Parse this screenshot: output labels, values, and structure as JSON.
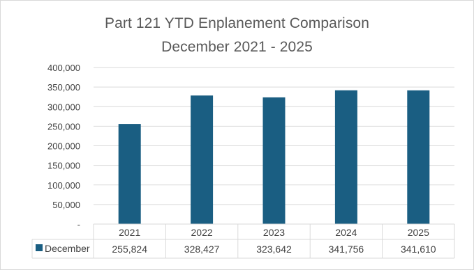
{
  "chart_data": {
    "type": "bar",
    "title": "Part 121 YTD Enplanement Comparison",
    "subtitle": "December 2021 - 2025",
    "categories": [
      "2021",
      "2022",
      "2023",
      "2024",
      "2025"
    ],
    "series": [
      {
        "name": "December",
        "values": [
          255824,
          328427,
          323642,
          341756,
          341610
        ],
        "value_labels": [
          "255,824",
          "328,427",
          "323,642",
          "341,756",
          "341,610"
        ],
        "color": "#1a5e82"
      }
    ],
    "ylim": [
      0,
      400000
    ],
    "y_ticks": [
      0,
      50000,
      100000,
      150000,
      200000,
      250000,
      300000,
      350000,
      400000
    ],
    "y_tick_labels": [
      "-",
      "50,000",
      "100,000",
      "150,000",
      "200,000",
      "250,000",
      "300,000",
      "350,000",
      "400,000"
    ],
    "xlabel": "",
    "ylabel": "",
    "grid": true,
    "legend": "data-table",
    "data_table": true
  },
  "colors": {
    "bar": "#1a5e82",
    "grid": "#d9d9d9",
    "text": "#404040",
    "title": "#595959"
  }
}
